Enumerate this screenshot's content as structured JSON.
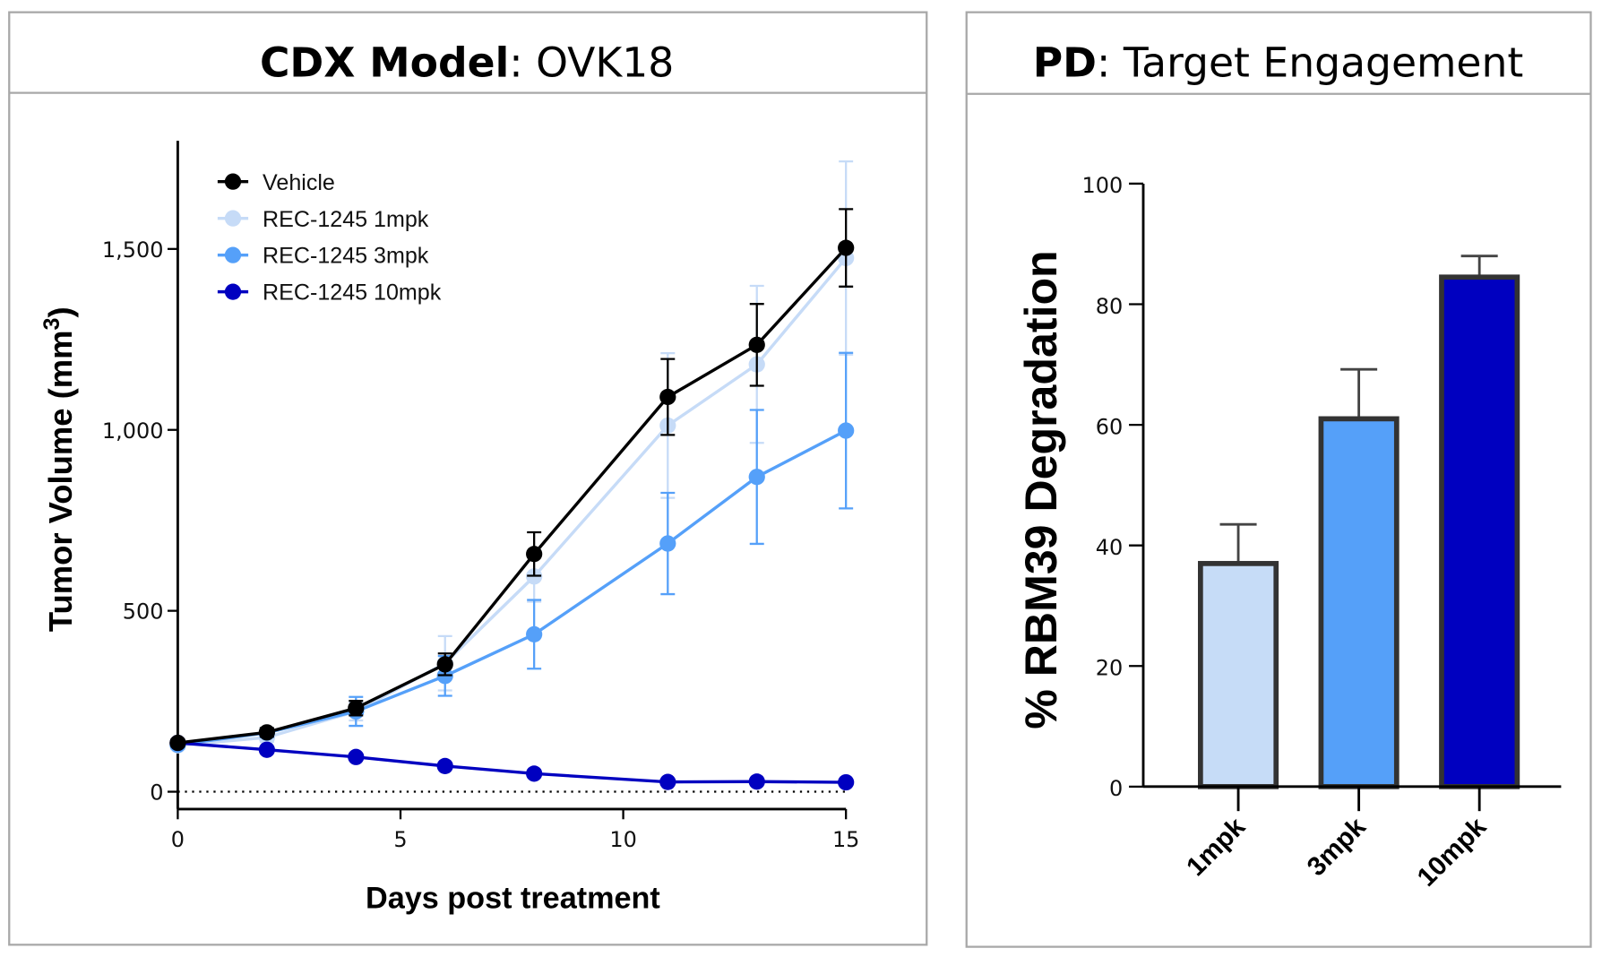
{
  "chart_data": [
    {
      "type": "line",
      "panel_title_bold": "CDX Model",
      "panel_title_rest": ": OVK18",
      "xlabel": "Days post treatment",
      "ylabel": "Tumor Volume (mm",
      "ylabel_sup": "3",
      "ylabel_end": ")",
      "xlim": [
        0,
        15
      ],
      "ylim": [
        -40,
        1800
      ],
      "xticks": [
        0,
        5,
        10,
        15
      ],
      "xtick_labels": [
        "0",
        "5",
        "10",
        "15"
      ],
      "yticks": [
        0,
        500,
        1000,
        1500
      ],
      "ytick_labels": [
        "0",
        "500",
        "1,000",
        "1,500"
      ],
      "reference_line": {
        "y": 0,
        "style": "dotted"
      },
      "legend_position": "top-left",
      "x": [
        0,
        2,
        4,
        6,
        8,
        11,
        13,
        15
      ],
      "series": [
        {
          "name": "Vehicle",
          "color": "#000000",
          "values": [
            135,
            164,
            231,
            352,
            657,
            1091,
            1235,
            1503
          ],
          "errors": [
            10,
            12,
            20,
            30,
            60,
            105,
            113,
            107
          ]
        },
        {
          "name": "REC-1245 1mpk",
          "color": "#c6dbf7",
          "values": [
            128,
            150,
            222,
            355,
            595,
            1012,
            1181,
            1475
          ],
          "errors": [
            10,
            12,
            25,
            75,
            70,
            200,
            217,
            267
          ]
        },
        {
          "name": "REC-1245 3mpk",
          "color": "#55a0f9",
          "values": [
            130,
            163,
            222,
            320,
            435,
            686,
            870,
            998
          ],
          "errors": [
            10,
            12,
            40,
            55,
            95,
            140,
            185,
            215
          ]
        },
        {
          "name": "REC-1245 10mpk",
          "color": "#0000c0",
          "values": [
            135,
            116,
            96,
            71,
            50,
            27,
            28,
            26
          ],
          "errors": [
            5,
            5,
            5,
            5,
            5,
            4,
            4,
            4
          ]
        }
      ]
    },
    {
      "type": "bar",
      "panel_title_bold": "PD",
      "panel_title_rest": ": Target Engagement",
      "ylabel": "% RBM39 Degradation",
      "ylim": [
        0,
        100
      ],
      "yticks": [
        0,
        20,
        40,
        60,
        80,
        100
      ],
      "ytick_labels": [
        "0",
        "20",
        "40",
        "60",
        "80",
        "100"
      ],
      "categories": [
        "1mpk",
        "3mpk",
        "10mpk"
      ],
      "values": [
        37,
        61,
        84.5
      ],
      "errors": [
        6.5,
        8.2,
        3.5
      ],
      "colors": [
        "#c6dcf7",
        "#55a0f9",
        "#0000c0"
      ],
      "bar_edge_color": "#333333"
    }
  ]
}
